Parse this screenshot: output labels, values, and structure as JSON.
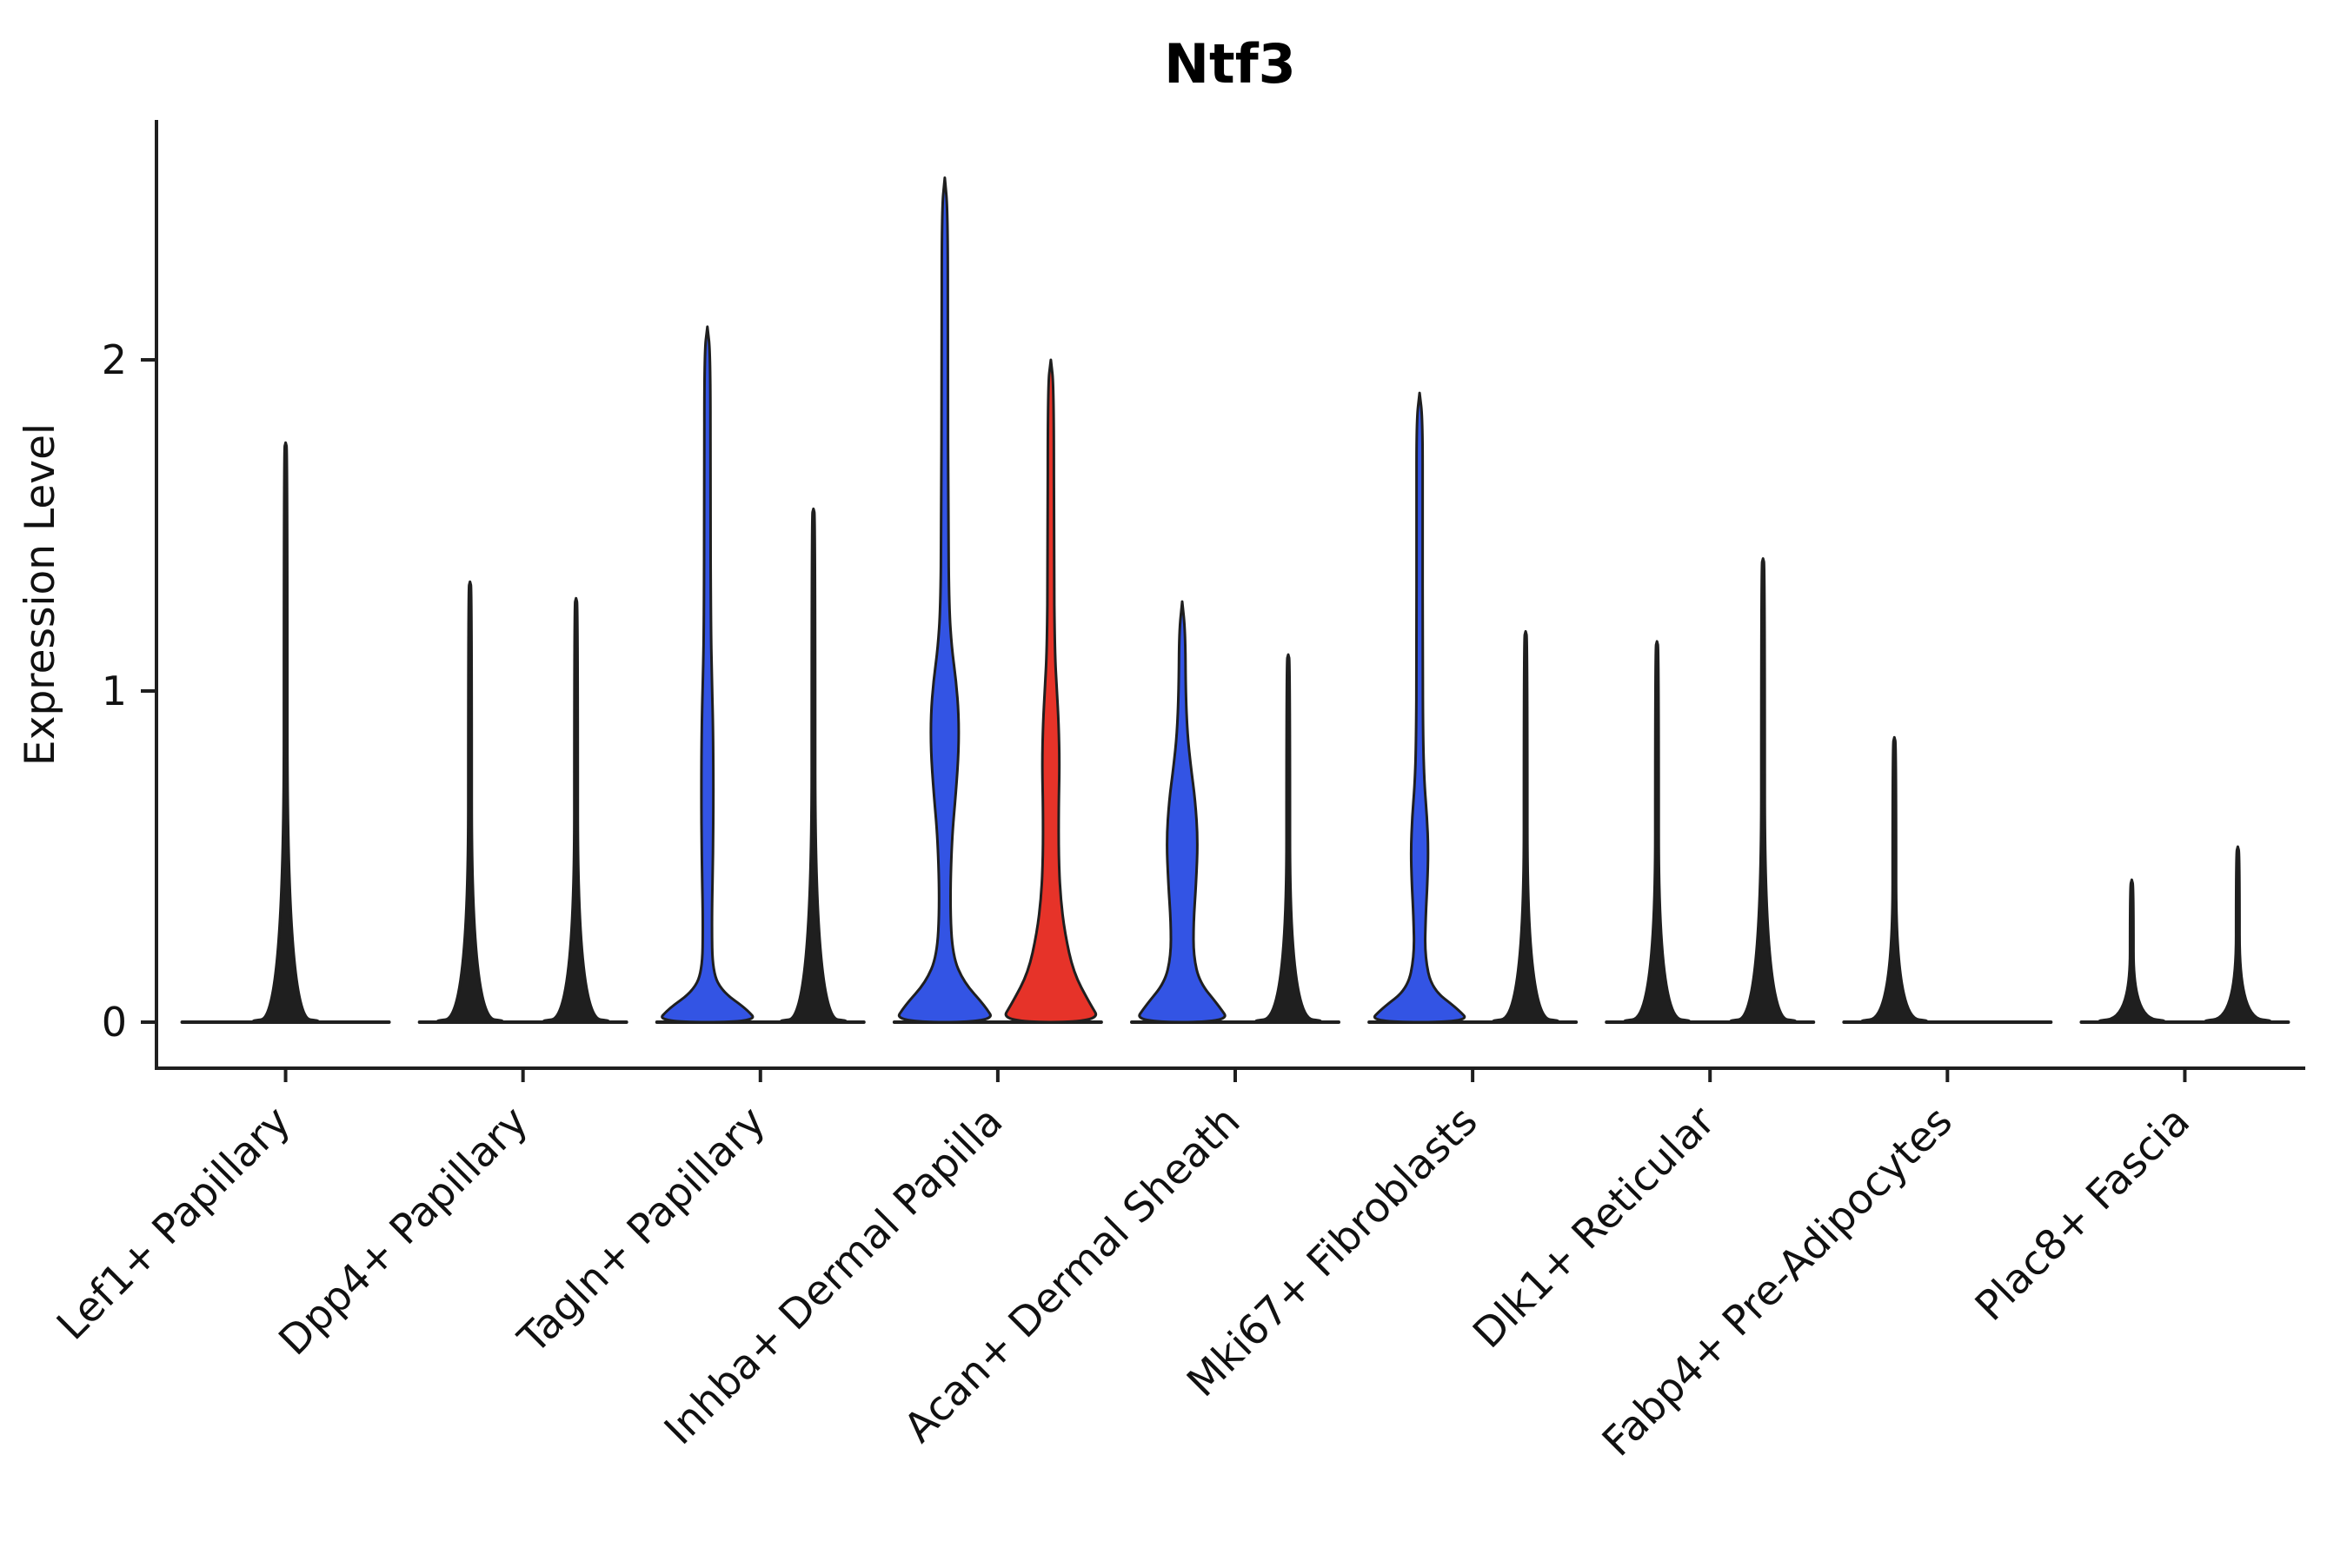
{
  "chart_data": {
    "type": "violin",
    "title": "Ntf3",
    "ylabel": "Expression Level",
    "yticks": [
      0,
      1,
      2
    ],
    "ylim": [
      -0.14,
      2.85
    ],
    "grid": false,
    "categories": [
      "Lef1+ Papillary",
      "Dpp4+ Papillary",
      "Tagln+ Papillary",
      "Inhba+ Dermal Papilla",
      "Acan+ Dermal Sheath",
      "Mki67+ Fibroblasts",
      "Dlk1+ Reticular",
      "Fabp4+ Pre-Adipocytes",
      "Plac8+ Fascia"
    ],
    "colors": {
      "dark": "#1f1f1f",
      "blue": "#3354e4",
      "red": "#e63329"
    },
    "violins": [
      {
        "category_index": 0,
        "side": 0,
        "max": 1.75,
        "color": "dark",
        "shape": "spike"
      },
      {
        "category_index": 1,
        "side": -1,
        "max": 1.33,
        "color": "dark",
        "shape": "spike"
      },
      {
        "category_index": 1,
        "side": 1,
        "max": 1.28,
        "color": "dark",
        "shape": "spike"
      },
      {
        "category_index": 2,
        "side": -1,
        "max": 2.1,
        "color": "blue",
        "shape": "body",
        "profile": [
          [
            0,
            58
          ],
          [
            0.04,
            45
          ],
          [
            0.09,
            18
          ],
          [
            0.15,
            6
          ],
          [
            0.3,
            5
          ],
          [
            0.5,
            6.5
          ],
          [
            0.7,
            7
          ],
          [
            0.9,
            6.5
          ],
          [
            1.05,
            5
          ],
          [
            1.2,
            4
          ],
          [
            1.6,
            3.5
          ],
          [
            2.02,
            3.5
          ],
          [
            2.1,
            0
          ]
        ]
      },
      {
        "category_index": 2,
        "side": 1,
        "max": 1.55,
        "color": "dark",
        "shape": "spike"
      },
      {
        "category_index": 3,
        "side": -1,
        "max": 2.55,
        "color": "blue",
        "shape": "body",
        "profile": [
          [
            0,
            58
          ],
          [
            0.05,
            46
          ],
          [
            0.12,
            22
          ],
          [
            0.2,
            9
          ],
          [
            0.35,
            6
          ],
          [
            0.55,
            8
          ],
          [
            0.7,
            13
          ],
          [
            0.82,
            16
          ],
          [
            0.93,
            16
          ],
          [
            1.03,
            13
          ],
          [
            1.13,
            8
          ],
          [
            1.25,
            5
          ],
          [
            1.5,
            4
          ],
          [
            2.0,
            3.5
          ],
          [
            2.45,
            3.5
          ],
          [
            2.55,
            0
          ]
        ]
      },
      {
        "category_index": 3,
        "side": 1,
        "max": 2.0,
        "color": "red",
        "shape": "body",
        "profile": [
          [
            0,
            58
          ],
          [
            0.06,
            44
          ],
          [
            0.15,
            26
          ],
          [
            0.27,
            16
          ],
          [
            0.38,
            11
          ],
          [
            0.5,
            9
          ],
          [
            0.65,
            9
          ],
          [
            0.78,
            10
          ],
          [
            0.9,
            9
          ],
          [
            1.0,
            7
          ],
          [
            1.12,
            4.5
          ],
          [
            1.4,
            3.5
          ],
          [
            1.92,
            3.5
          ],
          [
            2.0,
            0
          ]
        ]
      },
      {
        "category_index": 4,
        "side": -1,
        "max": 1.27,
        "color": "blue",
        "shape": "body",
        "profile": [
          [
            0,
            55
          ],
          [
            0.05,
            42
          ],
          [
            0.12,
            20
          ],
          [
            0.2,
            13
          ],
          [
            0.3,
            13
          ],
          [
            0.42,
            16
          ],
          [
            0.55,
            18
          ],
          [
            0.67,
            15
          ],
          [
            0.77,
            10
          ],
          [
            0.87,
            6
          ],
          [
            1.0,
            4
          ],
          [
            1.18,
            3.5
          ],
          [
            1.27,
            0
          ]
        ]
      },
      {
        "category_index": 4,
        "side": 1,
        "max": 1.11,
        "color": "dark",
        "shape": "spike"
      },
      {
        "category_index": 5,
        "side": -1,
        "max": 1.9,
        "color": "blue",
        "shape": "body",
        "profile": [
          [
            0,
            58
          ],
          [
            0.04,
            44
          ],
          [
            0.1,
            14
          ],
          [
            0.2,
            6
          ],
          [
            0.32,
            7
          ],
          [
            0.42,
            9
          ],
          [
            0.52,
            10
          ],
          [
            0.62,
            8.5
          ],
          [
            0.72,
            5.5
          ],
          [
            0.85,
            4
          ],
          [
            1.1,
            3.5
          ],
          [
            1.55,
            3.5
          ],
          [
            1.82,
            3.5
          ],
          [
            1.9,
            0
          ]
        ]
      },
      {
        "category_index": 5,
        "side": 1,
        "max": 1.18,
        "color": "dark",
        "shape": "spike"
      },
      {
        "category_index": 6,
        "side": -1,
        "max": 1.15,
        "color": "dark",
        "shape": "spike"
      },
      {
        "category_index": 6,
        "side": 1,
        "max": 1.4,
        "color": "dark",
        "shape": "spike"
      },
      {
        "category_index": 7,
        "side": -1,
        "max": 0.86,
        "color": "dark",
        "shape": "spike"
      },
      {
        "category_index": 8,
        "side": -1,
        "max": 0.43,
        "color": "dark",
        "shape": "spike"
      },
      {
        "category_index": 8,
        "side": 1,
        "max": 0.53,
        "color": "dark",
        "shape": "spike"
      }
    ]
  }
}
